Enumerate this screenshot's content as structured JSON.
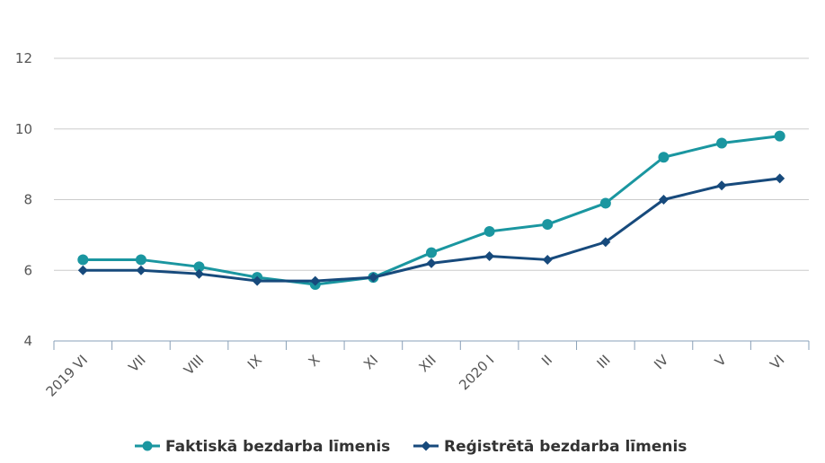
{
  "chart_data": {
    "type": "line",
    "categories": [
      "2019 VI",
      "VII",
      "VIII",
      "IX",
      "X",
      "XI",
      "XII",
      "2020 I",
      "II",
      "III",
      "IV",
      "V",
      "VI"
    ],
    "series": [
      {
        "name": "Faktiskā bezdarba līmenis",
        "color": "#1a96a0",
        "marker": "circle",
        "values": [
          6.3,
          6.3,
          6.1,
          5.8,
          5.6,
          5.8,
          6.5,
          7.1,
          7.3,
          7.9,
          9.2,
          9.6,
          9.8
        ]
      },
      {
        "name": "Reģistrētā bezdarba līmenis",
        "color": "#174a7c",
        "marker": "diamond",
        "values": [
          6.0,
          6.0,
          5.9,
          5.7,
          5.7,
          5.8,
          6.2,
          6.4,
          6.3,
          6.8,
          8.0,
          8.4,
          8.6
        ]
      }
    ],
    "yticks": [
      4,
      6,
      8,
      10,
      12
    ],
    "ylim": [
      4,
      12
    ],
    "grid": true,
    "legend_position": "bottom"
  }
}
